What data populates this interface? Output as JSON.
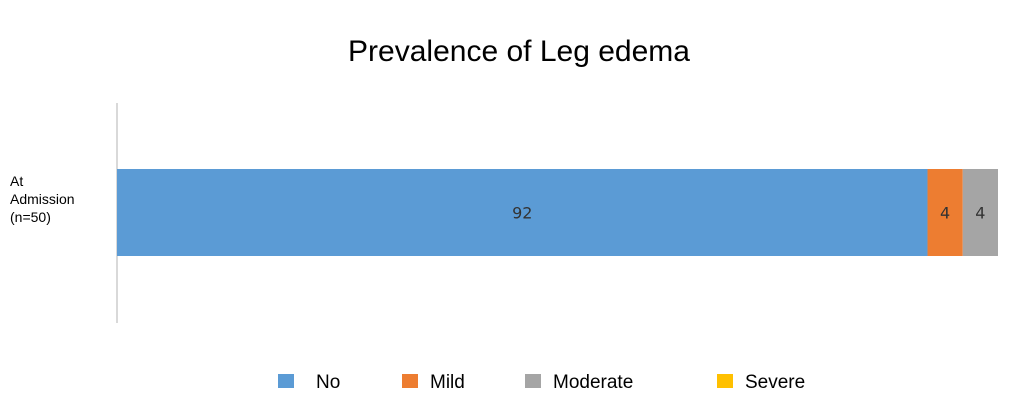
{
  "chart_data": {
    "type": "bar",
    "orientation": "horizontal",
    "stacked": true,
    "title": "Prevalence of Leg edema",
    "categories": [
      "At Admission (n=50)"
    ],
    "category_lines": [
      "At",
      "Admission",
      "(n=50)"
    ],
    "series": [
      {
        "name": "No",
        "values": [
          92
        ],
        "color": "#5b9bd5"
      },
      {
        "name": "Mild",
        "values": [
          4
        ],
        "color": "#ed7d31"
      },
      {
        "name": "Moderate",
        "values": [
          4
        ],
        "color": "#a5a5a5"
      },
      {
        "name": "Severe",
        "values": [
          0
        ],
        "color": "#ffc000"
      }
    ],
    "xlim": [
      0,
      100
    ],
    "grid": false,
    "legend": "bottom",
    "data_labels": true
  }
}
